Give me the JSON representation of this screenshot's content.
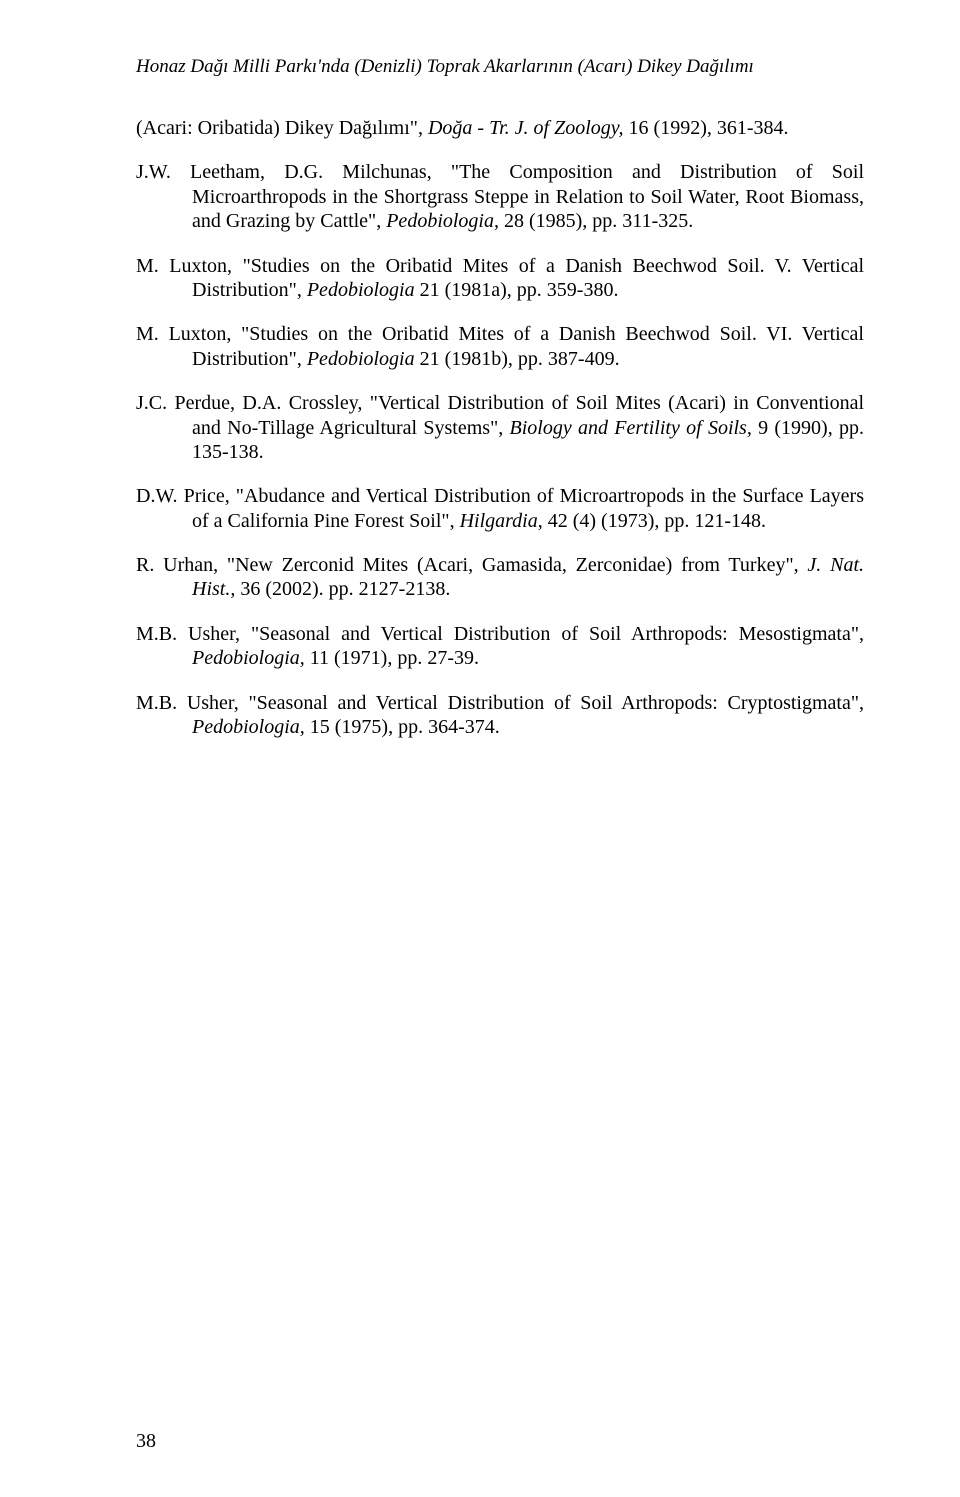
{
  "header": "Honaz Dağı Milli Parkı'nda (Denizli) Toprak Akarlarının (Acarı) Dikey Dağılımı",
  "refs": [
    {
      "segments": [
        {
          "t": "(Acari: Oribatida) Dikey Dağılımı\", "
        },
        {
          "t": "Doğa - Tr. J. of Zoology,",
          "i": true
        },
        {
          "t": " 16 (1992), 361-384."
        }
      ]
    },
    {
      "segments": [
        {
          "t": "J.W. Leetham, D.G. Milchunas, \"The Composition and Distribution of Soil Microarthropods in the Shortgrass Steppe in Relation to Soil Water, Root Biomass, and Grazing by Cattle\", "
        },
        {
          "t": "Pedobiologia,",
          "i": true
        },
        {
          "t": " 28 (1985), pp. 311-325."
        }
      ]
    },
    {
      "segments": [
        {
          "t": "M. Luxton, \"Studies on the Oribatid Mites of a Danish Beechwod Soil. V. Vertical Distribution\", "
        },
        {
          "t": "Pedobiologia",
          "i": true
        },
        {
          "t": " 21 (1981a), pp. 359-380."
        }
      ]
    },
    {
      "segments": [
        {
          "t": "M. Luxton, \"Studies on the Oribatid Mites of a Danish Beechwod Soil. VI. Vertical Distribution\", "
        },
        {
          "t": "Pedobiologia",
          "i": true
        },
        {
          "t": " 21 (1981b), pp. 387-409."
        }
      ]
    },
    {
      "segments": [
        {
          "t": "J.C. Perdue, D.A. Crossley, \"Vertical Distribution of Soil Mites (Acari) in Conventional and No-Tillage Agricultural Systems\", "
        },
        {
          "t": "Biology and Fertility of Soils,",
          "i": true
        },
        {
          "t": " 9 (1990), pp. 135-138."
        }
      ]
    },
    {
      "segments": [
        {
          "t": "D.W. Price, \"Abudance and Vertical Distribution of Microartropods in the Surface Layers of a California Pine Forest Soil\", "
        },
        {
          "t": "Hilgardia",
          "i": true
        },
        {
          "t": ", 42 (4) (1973), pp. 121-148."
        }
      ]
    },
    {
      "segments": [
        {
          "t": "R. Urhan, \"New Zerconid Mites (Acari, Gamasida, Zerconidae) from Turkey\", "
        },
        {
          "t": "J. Nat. Hist.,",
          "i": true
        },
        {
          "t": " 36 (2002). pp. 2127-2138."
        }
      ]
    },
    {
      "segments": [
        {
          "t": "M.B. Usher, \"Seasonal and Vertical Distribution of Soil Arthropods: Mesostigmata\", "
        },
        {
          "t": "Pedobiologia,",
          "i": true
        },
        {
          "t": " 11 (1971), pp. 27-39."
        }
      ]
    },
    {
      "segments": [
        {
          "t": "M.B. Usher, \"Seasonal and Vertical Distribution of Soil Arthropods: Cryptostigmata\", "
        },
        {
          "t": "Pedobiologia,",
          "i": true
        },
        {
          "t": " 15 (1975), pp. 364-374."
        }
      ]
    }
  ],
  "pageNumber": "38"
}
